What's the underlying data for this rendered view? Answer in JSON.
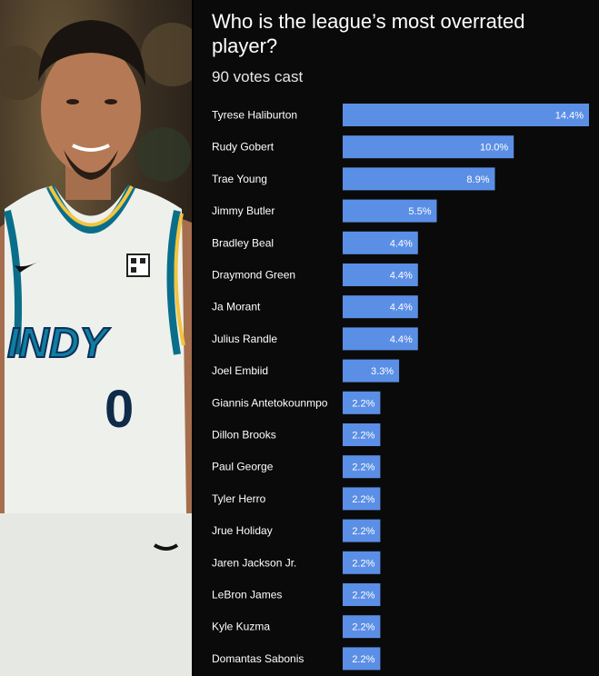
{
  "photo": {
    "jersey_text": "INDY",
    "jersey_number": "0"
  },
  "poll": {
    "title": "Who is the league’s most overrated player?",
    "subtitle": "90 votes cast"
  },
  "colors": {
    "bar": "#5b8fe6",
    "background": "#0a0a0a",
    "text": "#ffffff"
  },
  "chart_data": {
    "type": "bar",
    "orientation": "horizontal",
    "title": "Who is the league’s most overrated player?",
    "categories": [
      "Tyrese Haliburton",
      "Rudy Gobert",
      "Trae Young",
      "Jimmy Butler",
      "Bradley Beal",
      "Draymond Green",
      "Ja Morant",
      "Julius Randle",
      "Joel Embiid",
      "Giannis Antetokounmpo",
      "Dillon Brooks",
      "Paul George",
      "Tyler Herro",
      "Jrue Holiday",
      "Jaren Jackson Jr.",
      "LeBron James",
      "Kyle Kuzma",
      "Domantas Sabonis"
    ],
    "values": [
      14.4,
      10.0,
      8.9,
      5.5,
      4.4,
      4.4,
      4.4,
      4.4,
      3.3,
      2.2,
      2.2,
      2.2,
      2.2,
      2.2,
      2.2,
      2.2,
      2.2,
      2.2
    ],
    "value_labels": [
      "14.4%",
      "10.0%",
      "8.9%",
      "5.5%",
      "4.4%",
      "4.4%",
      "4.4%",
      "4.4%",
      "3.3%",
      "2.2%",
      "2.2%",
      "2.2%",
      "2.2%",
      "2.2%",
      "2.2%",
      "2.2%",
      "2.2%",
      "2.2%"
    ],
    "grid": false
  }
}
